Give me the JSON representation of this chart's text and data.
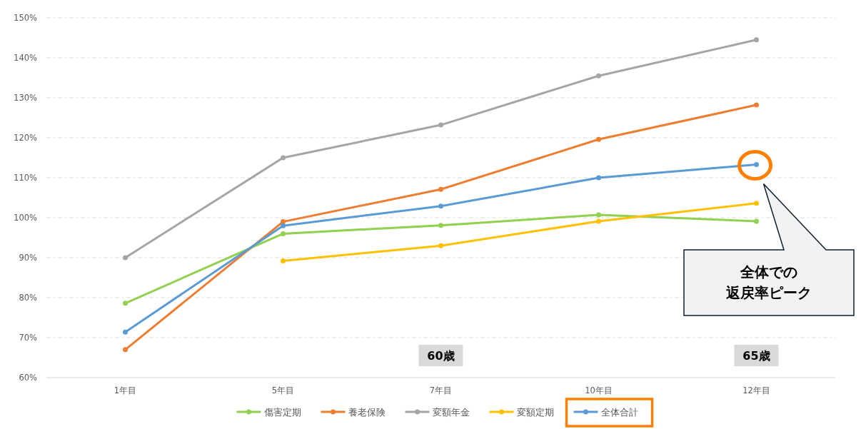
{
  "chart_data": {
    "type": "line",
    "categories": [
      "1年目",
      "5年目",
      "7年目",
      "10年目",
      "12年目"
    ],
    "series": [
      {
        "name": "傷害定期",
        "color": "#92d050",
        "values": [
          78.6,
          96,
          98.1,
          100.7,
          99.1
        ]
      },
      {
        "name": "養老保険",
        "color": "#ed7d31",
        "values": [
          67,
          99,
          107.1,
          119.6,
          128.2
        ]
      },
      {
        "name": "変額年金",
        "color": "#a5a5a5",
        "values": [
          90,
          115,
          123.2,
          135.5,
          144.5
        ]
      },
      {
        "name": "変額定期",
        "color": "#ffc000",
        "values": [
          null,
          89.2,
          93,
          99.1,
          103.6
        ]
      },
      {
        "name": "全体合計",
        "color": "#5b9bd5",
        "values": [
          71.4,
          98,
          102.9,
          110,
          113.3
        ]
      }
    ],
    "ylim": [
      60,
      150
    ],
    "yticks": [
      {
        "value": 60,
        "label": "60%"
      },
      {
        "value": 70,
        "label": "70%"
      },
      {
        "value": 80,
        "label": "80%"
      },
      {
        "value": 90,
        "label": "90%"
      },
      {
        "value": 100,
        "label": "100%"
      },
      {
        "value": 110,
        "label": "110%"
      },
      {
        "value": 120,
        "label": "120%"
      },
      {
        "value": 130,
        "label": "130%"
      },
      {
        "value": 140,
        "label": "140%"
      },
      {
        "value": 150,
        "label": "150%"
      }
    ],
    "grid": "y",
    "legend": "bottom",
    "marker": "circle",
    "line_style": "solid",
    "annotations": [
      "全体での返戻率ピーク",
      "60歳",
      "65歳"
    ]
  }
}
